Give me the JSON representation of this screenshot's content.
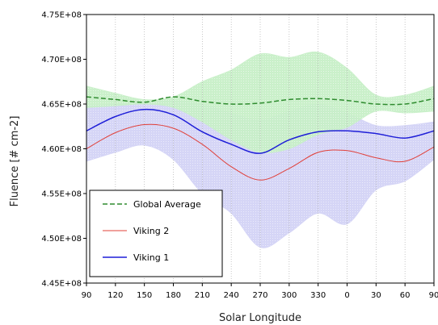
{
  "chart_data": {
    "type": "line",
    "xlabel": "Solar Longitude",
    "ylabel": "Fluence [# cm-2]",
    "x_categories": [
      "90",
      "120",
      "150",
      "180",
      "210",
      "240",
      "270",
      "300",
      "330",
      "0",
      "30",
      "60",
      "90"
    ],
    "y_ticks": [
      {
        "value": 445000000,
        "label": "4.45E+08"
      },
      {
        "value": 450000000,
        "label": "4.50E+08"
      },
      {
        "value": 455000000,
        "label": "4.55E+08"
      },
      {
        "value": 460000000,
        "label": "4.60E+08"
      },
      {
        "value": 465000000,
        "label": "4.65E+08"
      },
      {
        "value": 470000000,
        "label": "4.70E+08"
      },
      {
        "value": 475000000,
        "label": "4.75E+08"
      }
    ],
    "ylim": [
      445000000,
      475000000
    ],
    "grid": "vertical dotted lines at each x category",
    "legend_placement": "lower-left",
    "series": [
      {
        "name": "Global Average",
        "style": "dashed",
        "color": "#2e8b2e",
        "band_color": "#c8f0c8",
        "values": [
          465.8,
          465.5,
          465.2,
          465.8,
          465.3,
          465.0,
          465.1,
          465.5,
          465.6,
          465.4,
          465.0,
          465.0,
          465.6
        ],
        "band_upper": [
          467.0,
          466.2,
          465.5,
          465.8,
          467.5,
          468.8,
          470.6,
          470.2,
          470.8,
          469.0,
          466.0,
          466.0,
          467.0
        ],
        "band_lower": [
          464.6,
          464.8,
          465.0,
          464.6,
          463.0,
          461.0,
          459.6,
          460.0,
          461.6,
          462.4,
          464.2,
          464.0,
          464.2
        ]
      },
      {
        "name": "Viking 2",
        "style": "solid-thin",
        "color": "#e0403a",
        "values": [
          460.0,
          461.8,
          462.7,
          462.3,
          460.5,
          458.0,
          456.5,
          457.8,
          459.6,
          459.8,
          459.0,
          458.6,
          460.2
        ]
      },
      {
        "name": "Viking 1",
        "style": "solid",
        "color": "#1f1fd8",
        "band_color": "#d3d3f6",
        "values": [
          462.0,
          463.6,
          464.4,
          463.8,
          461.9,
          460.5,
          459.5,
          461.0,
          461.9,
          462.0,
          461.7,
          461.2,
          462.0
        ],
        "band_upper": [
          464.8,
          465.0,
          465.2,
          465.4,
          465.0,
          464.0,
          463.2,
          464.2,
          465.0,
          464.0,
          462.6,
          462.6,
          463.0
        ],
        "band_lower": [
          458.6,
          459.6,
          460.4,
          458.8,
          455.0,
          452.8,
          449.0,
          450.6,
          452.8,
          451.6,
          455.4,
          456.4,
          458.8
        ]
      }
    ]
  }
}
